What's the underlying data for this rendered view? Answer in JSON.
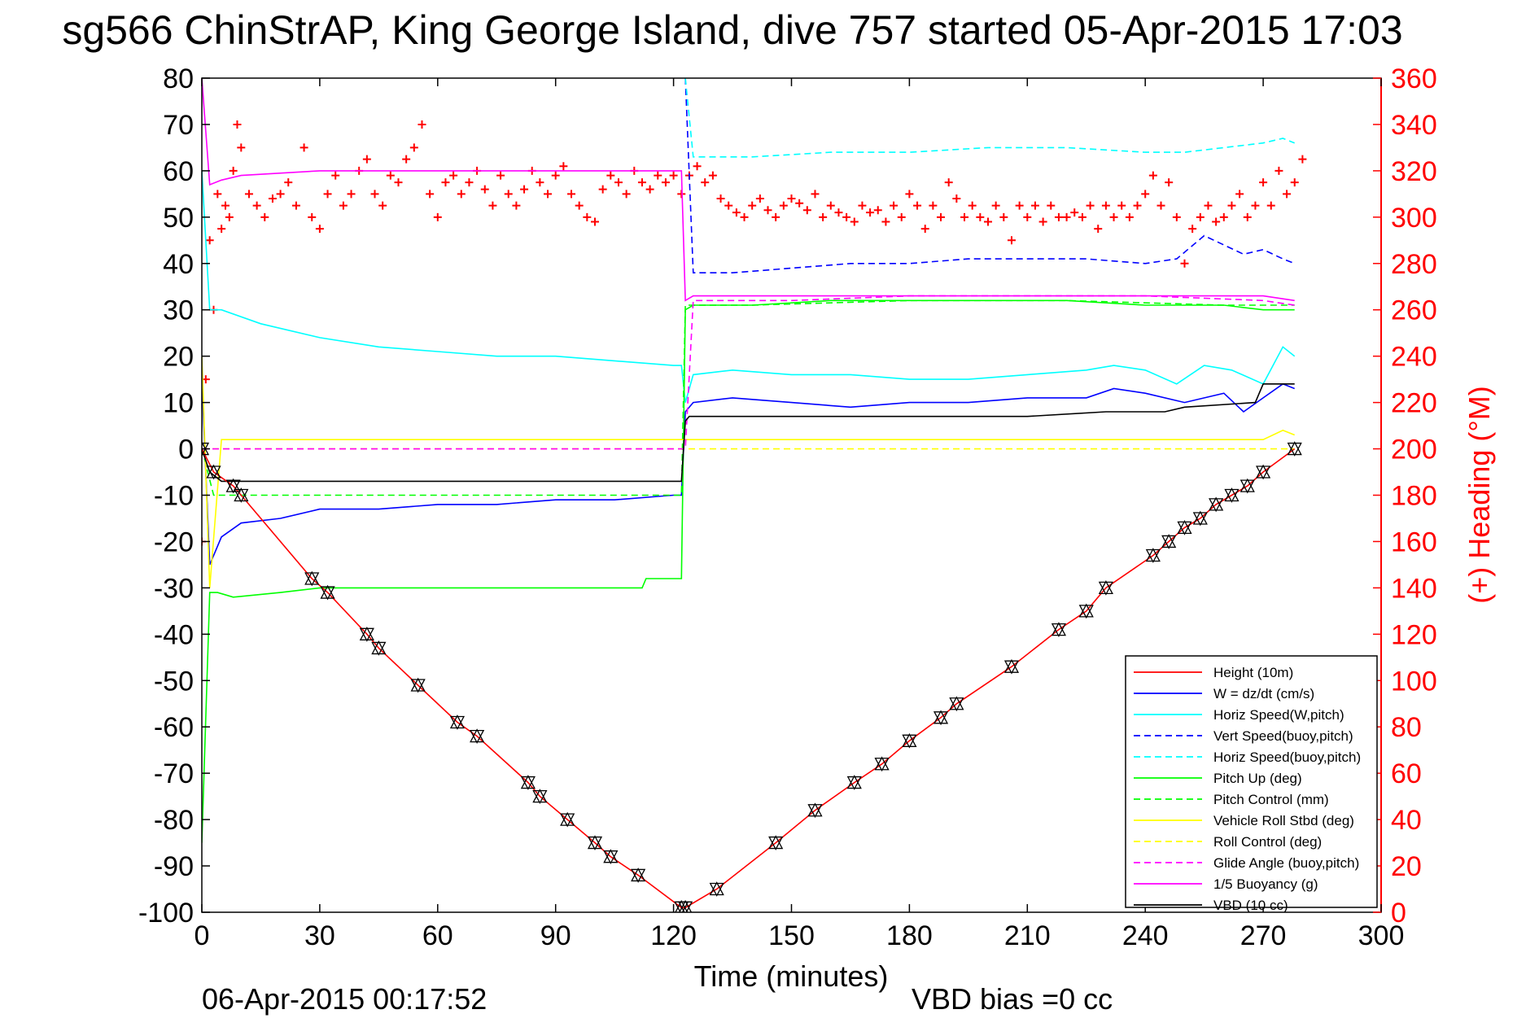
{
  "chart_data": {
    "type": "line",
    "title": "sg566 ChinStrAP, King George Island, dive 757 started 05-Apr-2015 17:03",
    "xlabel": "Time (minutes)",
    "ylabel": "",
    "y2label": "(+) Heading (°M)",
    "xlim": [
      0,
      300
    ],
    "ylim": [
      -100,
      80
    ],
    "y2lim": [
      0,
      360
    ],
    "xticks": [
      0,
      30,
      60,
      90,
      120,
      150,
      180,
      210,
      240,
      270,
      300
    ],
    "yticks": [
      80,
      70,
      60,
      50,
      40,
      30,
      20,
      10,
      0,
      -10,
      -20,
      -30,
      -40,
      -50,
      -60,
      -70,
      -80,
      -90,
      -100
    ],
    "y2ticks": [
      360,
      340,
      320,
      300,
      280,
      260,
      240,
      220,
      200,
      180,
      160,
      140,
      120,
      100,
      80,
      60,
      40,
      20,
      0
    ],
    "grid": false,
    "legend_position": "bottom-right",
    "footer_left": "06-Apr-2015 00:17:52",
    "footer_right": "VBD bias =0 cc",
    "series": [
      {
        "name": "Height (10m)",
        "color": "#ff0000",
        "style": "solid",
        "marker": "triangle",
        "x": [
          0,
          3,
          8,
          10,
          28,
          32,
          42,
          45,
          55,
          65,
          70,
          83,
          86,
          93,
          100,
          104,
          111,
          122,
          123,
          131,
          146,
          156,
          166,
          173,
          180,
          188,
          192,
          206,
          218,
          225,
          230,
          242,
          246,
          250,
          254,
          258,
          262,
          266,
          270,
          278
        ],
        "y": [
          0,
          -5,
          -8,
          -10,
          -28,
          -31,
          -40,
          -43,
          -51,
          -59,
          -62,
          -72,
          -75,
          -80,
          -85,
          -88,
          -92,
          -99,
          -99,
          -95,
          -85,
          -78,
          -72,
          -68,
          -63,
          -58,
          -55,
          -47,
          -39,
          -35,
          -30,
          -23,
          -20,
          -17,
          -15,
          -12,
          -10,
          -8,
          -5,
          0
        ]
      },
      {
        "name": "W = dz/dt (cm/s)",
        "color": "#0000ff",
        "style": "solid",
        "x": [
          0,
          2,
          5,
          10,
          20,
          30,
          45,
          60,
          75,
          90,
          105,
          120,
          122,
          123,
          125,
          135,
          150,
          165,
          180,
          195,
          210,
          225,
          232,
          240,
          250,
          260,
          265,
          270,
          275,
          278
        ],
        "y": [
          15,
          -25,
          -19,
          -16,
          -15,
          -13,
          -13,
          -12,
          -12,
          -11,
          -11,
          -10,
          -10,
          8,
          10,
          11,
          10,
          9,
          10,
          10,
          11,
          11,
          13,
          12,
          10,
          12,
          8,
          11,
          14,
          13
        ]
      },
      {
        "name": "Horiz Speed(W,pitch)",
        "color": "#00ffff",
        "style": "solid",
        "x": [
          0,
          2,
          5,
          15,
          30,
          45,
          60,
          75,
          90,
          105,
          120,
          122,
          123,
          125,
          135,
          150,
          165,
          180,
          195,
          210,
          225,
          232,
          240,
          248,
          255,
          262,
          270,
          275,
          278
        ],
        "y": [
          60,
          30,
          30,
          27,
          24,
          22,
          21,
          20,
          20,
          19,
          18,
          18,
          10,
          16,
          17,
          16,
          16,
          15,
          15,
          16,
          17,
          18,
          17,
          14,
          18,
          17,
          14,
          22,
          20
        ]
      },
      {
        "name": "Vert Speed(buoy,pitch)",
        "color": "#0000ff",
        "style": "dashed",
        "x": [
          123,
          125,
          135,
          150,
          165,
          180,
          195,
          210,
          225,
          240,
          248,
          255,
          265,
          270,
          275,
          278
        ],
        "y": [
          80,
          38,
          38,
          39,
          40,
          40,
          41,
          41,
          41,
          40,
          41,
          46,
          42,
          43,
          41,
          40
        ]
      },
      {
        "name": "Horiz Speed(buoy,pitch)",
        "color": "#00ffff",
        "style": "dashed",
        "x": [
          123,
          125,
          140,
          160,
          180,
          200,
          220,
          240,
          250,
          260,
          270,
          275,
          278
        ],
        "y": [
          80,
          63,
          63,
          64,
          64,
          65,
          65,
          64,
          64,
          65,
          66,
          67,
          66
        ]
      },
      {
        "name": "Pitch Up (deg)",
        "color": "#00ff00",
        "style": "solid",
        "x": [
          0,
          2,
          4,
          8,
          20,
          30,
          45,
          60,
          75,
          90,
          105,
          112,
          113,
          120,
          122,
          123,
          125,
          140,
          160,
          180,
          200,
          220,
          240,
          260,
          270,
          275,
          278
        ],
        "y": [
          -85,
          -31,
          -31,
          -32,
          -31,
          -30,
          -30,
          -30,
          -30,
          -30,
          -30,
          -30,
          -28,
          -28,
          -28,
          30,
          31,
          31,
          32,
          32,
          32,
          32,
          31,
          31,
          30,
          30,
          30
        ]
      },
      {
        "name": "Pitch Control (mm)",
        "color": "#00ff00",
        "style": "dashed",
        "x": [
          0,
          3,
          10,
          40,
          80,
          122,
          123,
          140,
          180,
          220,
          260,
          278
        ],
        "y": [
          0,
          -10,
          -10,
          -10,
          -10,
          -10,
          31,
          31,
          32,
          32,
          31,
          31
        ]
      },
      {
        "name": "Vehicle Roll Stbd (deg)",
        "color": "#ffff00",
        "style": "solid",
        "x": [
          0,
          2,
          5,
          10,
          30,
          60,
          90,
          120,
          125,
          150,
          180,
          210,
          240,
          260,
          270,
          275,
          278
        ],
        "y": [
          20,
          -30,
          2,
          2,
          2,
          2,
          2,
          2,
          2,
          2,
          2,
          2,
          2,
          2,
          2,
          4,
          3
        ]
      },
      {
        "name": "Roll Control (deg)",
        "color": "#ffff00",
        "style": "dashed",
        "x": [
          0,
          5,
          10,
          40,
          80,
          120,
          125,
          160,
          200,
          240,
          270,
          278
        ],
        "y": [
          0,
          0,
          0,
          0,
          0,
          0,
          0,
          0,
          0,
          0,
          0,
          0
        ]
      },
      {
        "name": "Glide Angle (buoy,pitch)",
        "color": "#ff00ff",
        "style": "dashed",
        "x": [
          0,
          2,
          30,
          60,
          90,
          120,
          122,
          123,
          125,
          150,
          180,
          210,
          240,
          270,
          278
        ],
        "y": [
          0,
          0,
          0,
          0,
          0,
          0,
          0,
          0,
          32,
          32,
          33,
          33,
          33,
          32,
          31
        ]
      },
      {
        "name": "1/5 Buoyancy (g)",
        "color": "#ff00ff",
        "style": "solid",
        "x": [
          0,
          2,
          5,
          10,
          30,
          60,
          90,
          122,
          123,
          125,
          150,
          180,
          210,
          240,
          270,
          278
        ],
        "y": [
          80,
          57,
          58,
          59,
          60,
          60,
          60,
          60,
          32,
          33,
          33,
          33,
          33,
          33,
          33,
          32
        ]
      },
      {
        "name": "VBD (10 cc)",
        "color": "#000000",
        "style": "solid",
        "x": [
          0,
          2,
          5,
          20,
          60,
          100,
          122,
          123,
          124,
          150,
          155,
          170,
          190,
          210,
          230,
          240,
          245,
          250,
          268,
          270,
          278
        ],
        "y": [
          0,
          -5,
          -7,
          -7,
          -7,
          -7,
          -7,
          6,
          7,
          7,
          7,
          7,
          7,
          7,
          8,
          8,
          8,
          9,
          10,
          14,
          14
        ]
      },
      {
        "name": "(+) Heading (°M)",
        "color": "#ff0000",
        "style": "markers",
        "marker": "plus",
        "axis": "right",
        "x": [
          0,
          1,
          2,
          3,
          4,
          5,
          6,
          7,
          8,
          9,
          10,
          12,
          14,
          16,
          18,
          20,
          22,
          24,
          26,
          28,
          30,
          32,
          34,
          36,
          38,
          40,
          42,
          44,
          46,
          48,
          50,
          52,
          54,
          56,
          58,
          60,
          62,
          64,
          66,
          68,
          70,
          72,
          74,
          76,
          78,
          80,
          82,
          84,
          86,
          88,
          90,
          92,
          94,
          96,
          98,
          100,
          102,
          104,
          106,
          108,
          110,
          112,
          114,
          116,
          118,
          120,
          122,
          124,
          126,
          128,
          130,
          132,
          134,
          136,
          138,
          140,
          142,
          144,
          146,
          148,
          150,
          152,
          154,
          156,
          158,
          160,
          162,
          164,
          166,
          168,
          170,
          172,
          174,
          176,
          178,
          180,
          182,
          184,
          186,
          188,
          190,
          192,
          194,
          196,
          198,
          200,
          202,
          204,
          206,
          208,
          210,
          212,
          214,
          216,
          218,
          220,
          222,
          224,
          226,
          228,
          230,
          232,
          234,
          236,
          238,
          240,
          242,
          244,
          246,
          248,
          250,
          252,
          254,
          256,
          258,
          260,
          262,
          264,
          266,
          268,
          270,
          272,
          274,
          276,
          278,
          280
        ],
        "y": [
          160,
          230,
          290,
          260,
          310,
          295,
          305,
          300,
          320,
          340,
          330,
          310,
          305,
          300,
          308,
          310,
          315,
          305,
          330,
          300,
          295,
          310,
          318,
          305,
          310,
          320,
          325,
          310,
          305,
          318,
          315,
          325,
          330,
          340,
          310,
          300,
          315,
          318,
          310,
          315,
          320,
          312,
          305,
          318,
          310,
          305,
          312,
          320,
          315,
          310,
          318,
          322,
          310,
          305,
          300,
          298,
          312,
          318,
          315,
          310,
          320,
          315,
          312,
          318,
          315,
          318,
          310,
          318,
          322,
          315,
          318,
          308,
          305,
          302,
          300,
          305,
          308,
          303,
          300,
          305,
          308,
          306,
          303,
          310,
          300,
          305,
          302,
          300,
          298,
          305,
          302,
          303,
          298,
          305,
          300,
          310,
          305,
          295,
          305,
          300,
          315,
          308,
          300,
          305,
          300,
          298,
          305,
          300,
          290,
          305,
          300,
          305,
          298,
          305,
          300,
          300,
          302,
          300,
          305,
          295,
          305,
          300,
          305,
          300,
          305,
          310,
          318,
          305,
          315,
          300,
          280,
          295,
          300,
          305,
          298,
          300,
          305,
          310,
          300,
          305,
          315,
          305,
          320,
          310,
          315,
          325
        ]
      }
    ]
  }
}
